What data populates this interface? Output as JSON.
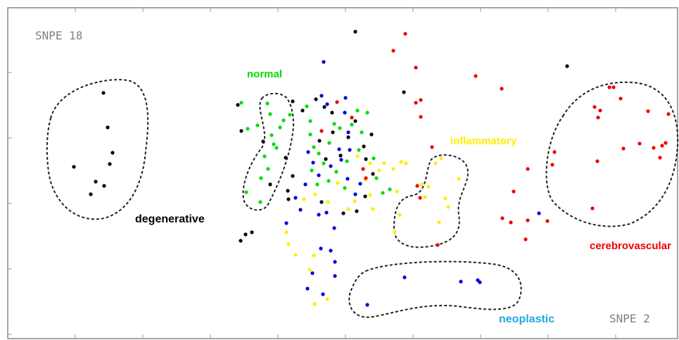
{
  "chart_data": {
    "type": "scatter",
    "title": "",
    "xlabel": "",
    "ylabel": "",
    "corner_labels": {
      "top_left": "SNPE 18",
      "bottom_right": "SNPE 2"
    },
    "grid": false,
    "series": [
      {
        "name": "degenerative",
        "color": "#000000",
        "points": [
          [
            147,
            132
          ],
          [
            153,
            181
          ],
          [
            160,
            217
          ],
          [
            156,
            233
          ],
          [
            105,
            237
          ],
          [
            136,
            258
          ],
          [
            148,
            264
          ],
          [
            129,
            276
          ],
          [
            338,
            149
          ],
          [
            343,
            186
          ],
          [
            374,
            201
          ],
          [
            384,
            262
          ],
          [
            409,
            271
          ],
          [
            410,
            283
          ],
          [
            416,
            250
          ],
          [
            406,
            224
          ],
          [
            416,
            144
          ],
          [
            430,
            157
          ],
          [
            449,
            141
          ],
          [
            461,
            152
          ],
          [
            472,
            160
          ],
          [
            454,
            200
          ],
          [
            463,
            226
          ],
          [
            473,
            188
          ],
          [
            484,
            221
          ],
          [
            495,
            195
          ],
          [
            505,
            172
          ],
          [
            517,
            208
          ],
          [
            520,
            226
          ],
          [
            528,
            191
          ],
          [
            530,
            247
          ],
          [
            507,
            300
          ],
          [
            519,
            279
          ],
          [
            488,
            303
          ],
          [
            457,
            287
          ],
          [
            349,
            333
          ],
          [
            342,
            342
          ],
          [
            358,
            330
          ],
          [
            505,
            45
          ],
          [
            574,
            131
          ],
          [
            806,
            94
          ]
        ]
      },
      {
        "name": "normal",
        "color": "#00dd00",
        "points": [
          [
            343,
            146
          ],
          [
            352,
            183
          ],
          [
            380,
            147
          ],
          [
            384,
            162
          ],
          [
            386,
            192
          ],
          [
            398,
            181
          ],
          [
            403,
            171
          ],
          [
            412,
            163
          ],
          [
            393,
            210
          ],
          [
            376,
            222
          ],
          [
            381,
            240
          ],
          [
            371,
            253
          ],
          [
            370,
            287
          ],
          [
            350,
            273
          ],
          [
            436,
            151
          ],
          [
            441,
            191
          ],
          [
            446,
            209
          ],
          [
            453,
            218
          ],
          [
            460,
            232
          ],
          [
            468,
            203
          ],
          [
            475,
            176
          ],
          [
            483,
            182
          ],
          [
            500,
            177
          ],
          [
            508,
            157
          ],
          [
            514,
            188
          ],
          [
            522,
            160
          ],
          [
            531,
            225
          ],
          [
            535,
            253
          ],
          [
            544,
            274
          ],
          [
            554,
            269
          ],
          [
            443,
            242
          ],
          [
            451,
            262
          ],
          [
            467,
            257
          ],
          [
            478,
            244
          ],
          [
            490,
            267
          ],
          [
            441,
            172
          ],
          [
            493,
            229
          ],
          [
            510,
            213
          ],
          [
            366,
            178
          ],
          [
            389,
            205
          ]
        ]
      },
      {
        "name": "neoplastic",
        "color": "#0000dd",
        "points": [
          [
            460,
            88
          ],
          [
            457,
            136
          ],
          [
            465,
            148
          ],
          [
            491,
            139
          ],
          [
            490,
            160
          ],
          [
            495,
            188
          ],
          [
            482,
            212
          ],
          [
            470,
            236
          ],
          [
            438,
            216
          ],
          [
            445,
            231
          ],
          [
            434,
            262
          ],
          [
            453,
            249
          ],
          [
            494,
            254
          ],
          [
            505,
            276
          ],
          [
            512,
            261
          ],
          [
            420,
            281
          ],
          [
            407,
            317
          ],
          [
            427,
            298
          ],
          [
            453,
            305
          ],
          [
            475,
            324
          ],
          [
            464,
            302
          ],
          [
            456,
            353
          ],
          [
            470,
            356
          ],
          [
            476,
            372
          ],
          [
            476,
            392
          ],
          [
            444,
            388
          ],
          [
            437,
            410
          ],
          [
            459,
            418
          ],
          [
            522,
            433
          ],
          [
            575,
            394
          ],
          [
            655,
            400
          ],
          [
            679,
            398
          ],
          [
            682,
            401
          ],
          [
            766,
            303
          ],
          [
            497,
            213
          ],
          [
            485,
            227
          ]
        ]
      },
      {
        "name": "inflammatory",
        "color": "#ffee00",
        "points": [
          [
            407,
            330
          ],
          [
            410,
            347
          ],
          [
            420,
            362
          ],
          [
            446,
            363
          ],
          [
            447,
            432
          ],
          [
            465,
            425
          ],
          [
            440,
            383
          ],
          [
            432,
            283
          ],
          [
            448,
            276
          ],
          [
            466,
            287
          ],
          [
            480,
            260
          ],
          [
            495,
            297
          ],
          [
            504,
            286
          ],
          [
            519,
            255
          ],
          [
            526,
            232
          ],
          [
            530,
            297
          ],
          [
            539,
            242
          ],
          [
            546,
            232
          ],
          [
            559,
            240
          ],
          [
            564,
            272
          ],
          [
            570,
            230
          ],
          [
            577,
            232
          ],
          [
            568,
            305
          ],
          [
            599,
            262
          ],
          [
            604,
            280
          ],
          [
            609,
            265
          ],
          [
            619,
            232
          ],
          [
            627,
            225
          ],
          [
            633,
            282
          ],
          [
            637,
            294
          ],
          [
            624,
            316
          ],
          [
            652,
            254
          ],
          [
            561,
            329
          ],
          [
            508,
            222
          ],
          [
            526,
            277
          ]
        ]
      },
      {
        "name": "cerebrovascular",
        "color": "#ee0000",
        "points": [
          [
            576,
            48
          ],
          [
            559,
            72
          ],
          [
            591,
            96
          ],
          [
            598,
            142
          ],
          [
            591,
            146
          ],
          [
            598,
            166
          ],
          [
            614,
            209
          ],
          [
            676,
            108
          ],
          [
            713,
            126
          ],
          [
            750,
            240
          ],
          [
            730,
            272
          ],
          [
            714,
            310
          ],
          [
            726,
            316
          ],
          [
            750,
            313
          ],
          [
            747,
            340
          ],
          [
            622,
            348
          ],
          [
            866,
            124
          ],
          [
            872,
            124
          ],
          [
            882,
            140
          ],
          [
            845,
            152
          ],
          [
            853,
            157
          ],
          [
            850,
            167
          ],
          [
            921,
            158
          ],
          [
            950,
            162
          ],
          [
            788,
            216
          ],
          [
            785,
            234
          ],
          [
            849,
            229
          ],
          [
            886,
            211
          ],
          [
            909,
            204
          ],
          [
            929,
            210
          ],
          [
            941,
            207
          ],
          [
            946,
            203
          ],
          [
            938,
            224
          ],
          [
            842,
            296
          ],
          [
            778,
            314
          ],
          [
            500,
            167
          ],
          [
            479,
            145
          ],
          [
            516,
            240
          ],
          [
            520,
            253
          ],
          [
            593,
            264
          ],
          [
            597,
            281
          ],
          [
            457,
            186
          ]
        ]
      }
    ],
    "cluster_labels": [
      {
        "text": "degenerative",
        "color": "#000000"
      },
      {
        "text": "normal",
        "color": "#00dd00"
      },
      {
        "text": "inflammatory",
        "color": "#ffee00"
      },
      {
        "text": "cerebrovascular",
        "color": "#ee0000"
      },
      {
        "text": "neoplastic",
        "color": "#22aadd"
      }
    ]
  }
}
